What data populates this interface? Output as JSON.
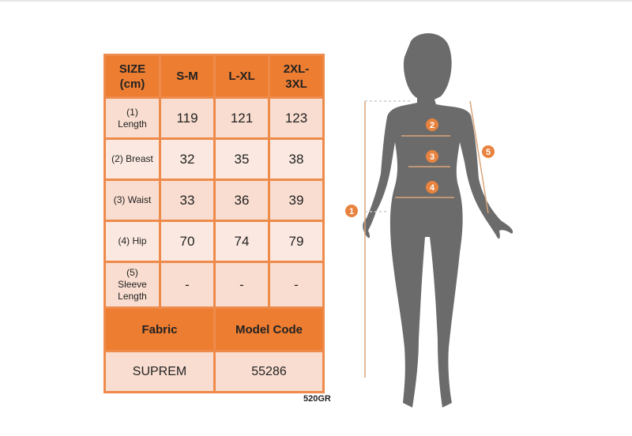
{
  "table": {
    "header": [
      "SIZE (cm)",
      "S-M",
      "L-XL",
      "2XL-3XL"
    ],
    "header_lines": [
      [
        "SIZE",
        "(cm)"
      ],
      [
        "S-M"
      ],
      [
        "L-XL"
      ],
      [
        "2XL-",
        "3XL"
      ]
    ],
    "rows": [
      {
        "label_lines": [
          "(1)",
          "Length"
        ],
        "values": [
          "119",
          "121",
          "123"
        ]
      },
      {
        "label_lines": [
          "(2) Breast"
        ],
        "values": [
          "32",
          "35",
          "38"
        ]
      },
      {
        "label_lines": [
          "(3) Waist"
        ],
        "values": [
          "33",
          "36",
          "39"
        ]
      },
      {
        "label_lines": [
          "(4) Hip"
        ],
        "values": [
          "70",
          "74",
          "79"
        ]
      },
      {
        "label_lines": [
          "(5)",
          "Sleeve",
          "Length"
        ],
        "values": [
          "-",
          "-",
          "-"
        ]
      }
    ],
    "fabric_label": "Fabric",
    "model_code_label": "Model Code",
    "fabric_value": "SUPREM",
    "model_code_value": "55286"
  },
  "weight_code": "520GR",
  "figure": {
    "markers": [
      "1",
      "2",
      "3",
      "4",
      "5"
    ]
  },
  "colors": {
    "accent": "#ed7d31",
    "cell": "#f9ddd0",
    "silhouette": "#6b6b6b",
    "measure_line": "#d9a57a"
  }
}
